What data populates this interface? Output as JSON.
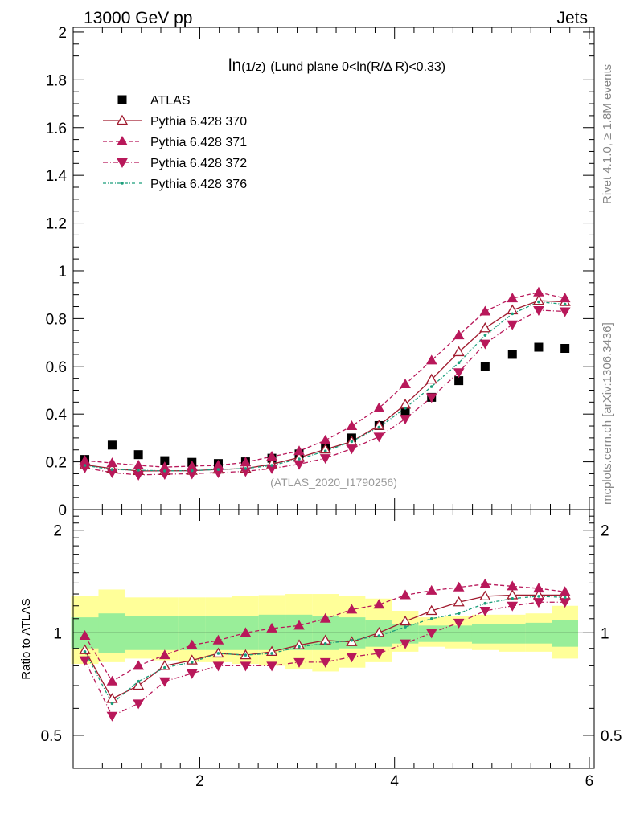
{
  "header": {
    "left_label": "13000 GeV pp",
    "right_label": "Jets"
  },
  "side_labels": {
    "rivet": "Rivet 4.1.0, ≥ 1.8M events",
    "mcplots": "mcplots.cern.ch [arXiv:1306.3436]"
  },
  "colors": {
    "data": "#000000",
    "p370": "#a01a2e",
    "p371": "#b8185a",
    "p372": "#b8185a",
    "p376": "#1a9e7a",
    "band_inner": "#99ee99",
    "band_outer": "#ffff99"
  },
  "chart_data": [
    {
      "panel": "main",
      "type": "scatter",
      "title": "ln(1/z) (Lund plane 0<ln(R/Δ R)<0.33)",
      "title_parts": {
        "a": "ln",
        "b": "(1/z)",
        "c": "(Lund plane 0<ln(R/Δ R)<0.33)"
      },
      "watermark": "(ATLAS_2020_I1790256)",
      "xlim": [
        0.7,
        6.05
      ],
      "ylim": [
        0,
        2.02
      ],
      "yticks": [
        0,
        0.2,
        0.4,
        0.6,
        0.8,
        1,
        1.2,
        1.4,
        1.6,
        1.8,
        2
      ],
      "ytick_labels": [
        "0",
        "0.2",
        "0.4",
        "0.6",
        "0.8",
        "1",
        "1.2",
        "1.4",
        "1.6",
        "1.8",
        "2"
      ],
      "x": [
        0.82,
        1.1,
        1.37,
        1.64,
        1.92,
        2.19,
        2.47,
        2.74,
        3.02,
        3.29,
        3.56,
        3.84,
        4.11,
        4.38,
        4.66,
        4.93,
        5.21,
        5.48,
        5.75
      ],
      "series": [
        {
          "name": "ATLAS",
          "style": "data",
          "values": [
            0.21,
            0.27,
            0.23,
            0.205,
            0.198,
            0.193,
            0.2,
            0.215,
            0.233,
            0.263,
            0.3,
            0.352,
            0.41,
            0.47,
            0.54,
            0.6,
            0.65,
            0.68,
            0.675
          ]
        },
        {
          "name": "Pythia 6.428 370",
          "style": "p370",
          "values": [
            0.187,
            0.172,
            0.162,
            0.162,
            0.163,
            0.168,
            0.172,
            0.19,
            0.218,
            0.252,
            0.285,
            0.352,
            0.44,
            0.545,
            0.66,
            0.76,
            0.835,
            0.875,
            0.87
          ]
        },
        {
          "name": "Pythia 6.428 371",
          "style": "p371",
          "values": [
            0.205,
            0.195,
            0.185,
            0.178,
            0.182,
            0.185,
            0.198,
            0.222,
            0.245,
            0.29,
            0.35,
            0.425,
            0.525,
            0.625,
            0.73,
            0.83,
            0.885,
            0.91,
            0.885
          ]
        },
        {
          "name": "Pythia 6.428 372",
          "style": "p372",
          "values": [
            0.175,
            0.155,
            0.145,
            0.148,
            0.15,
            0.155,
            0.16,
            0.172,
            0.19,
            0.215,
            0.255,
            0.305,
            0.38,
            0.47,
            0.575,
            0.695,
            0.775,
            0.835,
            0.83
          ]
        },
        {
          "name": "Pythia 6.428 376",
          "style": "p376",
          "values": [
            0.185,
            0.168,
            0.165,
            0.162,
            0.163,
            0.168,
            0.172,
            0.185,
            0.212,
            0.245,
            0.285,
            0.345,
            0.425,
            0.515,
            0.615,
            0.73,
            0.82,
            0.87,
            0.86
          ]
        }
      ]
    },
    {
      "panel": "ratio",
      "type": "line",
      "ylabel": "Ratio to ATLAS",
      "xlim": [
        0.7,
        6.05
      ],
      "ylim": [
        0.4,
        2.3
      ],
      "yticks": [
        0.5,
        1,
        2
      ],
      "ytick_labels": [
        "0.5",
        "1",
        "2"
      ],
      "xticks": [
        2,
        4,
        6
      ],
      "xtick_labels": [
        "2",
        "4",
        "6"
      ],
      "x_edges": [
        0.82,
        1.1,
        1.37,
        1.64,
        1.92,
        2.19,
        2.47,
        2.74,
        3.02,
        3.29,
        3.56,
        3.84,
        4.11,
        4.38,
        4.66,
        4.93,
        5.21,
        5.48,
        5.75
      ],
      "band_outer": {
        "low": [
          0.81,
          0.82,
          0.84,
          0.83,
          0.82,
          0.82,
          0.81,
          0.8,
          0.78,
          0.77,
          0.79,
          0.82,
          0.88,
          0.91,
          0.9,
          0.89,
          0.88,
          0.88,
          0.84
        ],
        "high": [
          1.28,
          1.34,
          1.27,
          1.27,
          1.27,
          1.27,
          1.28,
          1.29,
          1.3,
          1.3,
          1.28,
          1.26,
          1.16,
          1.11,
          1.12,
          1.13,
          1.13,
          1.14,
          1.2
        ]
      },
      "band_inner": {
        "low": [
          0.9,
          0.87,
          0.89,
          0.89,
          0.89,
          0.89,
          0.89,
          0.89,
          0.89,
          0.89,
          0.9,
          0.91,
          0.93,
          0.94,
          0.94,
          0.93,
          0.93,
          0.93,
          0.91
        ],
        "high": [
          1.11,
          1.14,
          1.12,
          1.12,
          1.12,
          1.12,
          1.12,
          1.13,
          1.13,
          1.12,
          1.11,
          1.09,
          1.06,
          1.05,
          1.05,
          1.06,
          1.06,
          1.07,
          1.09
        ]
      },
      "series": [
        {
          "name": "Pythia 6.428 370",
          "style": "p370",
          "values": [
            0.89,
            0.64,
            0.7,
            0.8,
            0.83,
            0.87,
            0.86,
            0.88,
            0.92,
            0.95,
            0.94,
            1.0,
            1.08,
            1.16,
            1.23,
            1.28,
            1.29,
            1.29,
            1.29
          ]
        },
        {
          "name": "Pythia 6.428 371",
          "style": "p371",
          "values": [
            0.98,
            0.72,
            0.8,
            0.86,
            0.92,
            0.95,
            1.0,
            1.03,
            1.05,
            1.1,
            1.17,
            1.21,
            1.29,
            1.33,
            1.36,
            1.39,
            1.37,
            1.35,
            1.32
          ]
        },
        {
          "name": "Pythia 6.428 372",
          "style": "p372",
          "values": [
            0.83,
            0.57,
            0.62,
            0.72,
            0.76,
            0.8,
            0.8,
            0.8,
            0.82,
            0.82,
            0.85,
            0.87,
            0.93,
            1.0,
            1.07,
            1.16,
            1.2,
            1.23,
            1.23
          ]
        },
        {
          "name": "Pythia 6.428 376",
          "style": "p376",
          "values": [
            0.88,
            0.62,
            0.72,
            0.79,
            0.82,
            0.87,
            0.86,
            0.87,
            0.91,
            0.93,
            0.95,
            0.98,
            1.04,
            1.1,
            1.14,
            1.22,
            1.26,
            1.28,
            1.27
          ]
        }
      ]
    }
  ]
}
